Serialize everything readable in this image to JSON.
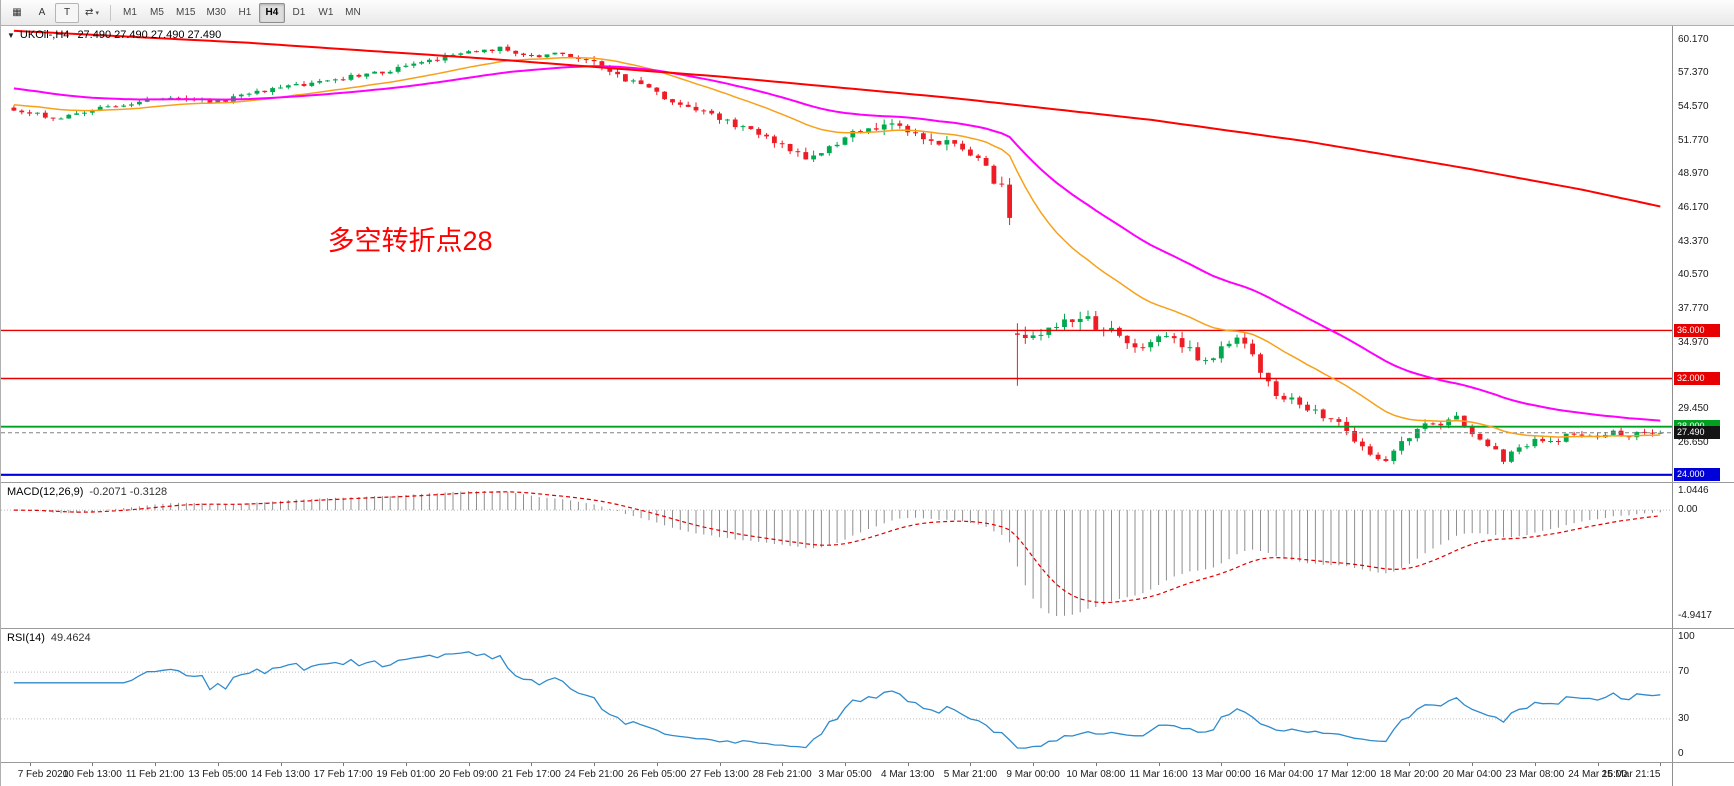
{
  "toolbar": {
    "icon_buttons": [
      {
        "name": "chart-grid-icon-button",
        "glyph": "▦"
      },
      {
        "name": "cursor-tool-button",
        "glyph": "A"
      },
      {
        "name": "text-tool-button",
        "glyph": "T",
        "boxed": true
      },
      {
        "name": "chart-cycle-button",
        "glyph": "⇄",
        "caret": "▾"
      }
    ],
    "timeframes": [
      "M1",
      "M5",
      "M15",
      "M30",
      "H1",
      "H4",
      "D1",
      "W1",
      "MN"
    ],
    "active_timeframe": "H4"
  },
  "chart_data": {
    "type": "candlestick",
    "symbol": "UKOil-",
    "timeframe": "H4",
    "title": "UKOil-,H4",
    "ohlc_readout": "27.490 27.490 27.490 27.490",
    "collapse_glyph": "▼",
    "annotation": {
      "text": "多空转折点28",
      "color": "#ff0000",
      "anchor_index": 40,
      "anchor_price": 44.6
    },
    "visible_range": {
      "price_min": 23.4,
      "price_max": 61.3
    },
    "bars": 211,
    "bar_spacing": 7.84,
    "seed": 20200325,
    "up_color": "#00a94e",
    "down_color": "#ee1c25",
    "price_axis_ticks": [
      60.17,
      57.37,
      54.57,
      51.77,
      48.97,
      46.17,
      43.37,
      40.57,
      37.77,
      34.97,
      29.45,
      26.65
    ],
    "levels": [
      {
        "value": 36.0,
        "label": "36.000",
        "color": "#e80000",
        "width": 1.4
      },
      {
        "value": 32.0,
        "label": "32.000",
        "color": "#e80000",
        "width": 1.4
      },
      {
        "value": 28.0,
        "label": "28.000",
        "color": "#00a021",
        "width": 1.8
      },
      {
        "value": 24.0,
        "label": "24.000",
        "color": "#0000d8",
        "width": 2.2
      }
    ],
    "current_price": {
      "value": 27.49,
      "label": "27.490",
      "badge_color": "#141414",
      "line_color": "#808080"
    },
    "price_path_anchors": [
      [
        0,
        54.3
      ],
      [
        6,
        53.6
      ],
      [
        12,
        54.6
      ],
      [
        20,
        55.3
      ],
      [
        26,
        55.0
      ],
      [
        32,
        55.9
      ],
      [
        40,
        56.8
      ],
      [
        48,
        57.6
      ],
      [
        56,
        58.9
      ],
      [
        62,
        59.4
      ],
      [
        66,
        58.7
      ],
      [
        70,
        59.1
      ],
      [
        74,
        58.3
      ],
      [
        78,
        56.8
      ],
      [
        84,
        55.2
      ],
      [
        90,
        53.5
      ],
      [
        96,
        52.0
      ],
      [
        101,
        50.3
      ],
      [
        104,
        51.2
      ],
      [
        108,
        52.6
      ],
      [
        112,
        53.3
      ],
      [
        116,
        52.2
      ],
      [
        120,
        51.3
      ],
      [
        123,
        50.2
      ],
      [
        126,
        47.8
      ],
      [
        127,
        45.6
      ],
      [
        128,
        36.1
      ],
      [
        129,
        35.8
      ],
      [
        130,
        35.2
      ],
      [
        132,
        36.3
      ],
      [
        136,
        36.8
      ],
      [
        140,
        36.2
      ],
      [
        143,
        34.8
      ],
      [
        146,
        35.6
      ],
      [
        150,
        34.3
      ],
      [
        152,
        33.2
      ],
      [
        154,
        34.5
      ],
      [
        156,
        35.6
      ],
      [
        158,
        33.9
      ],
      [
        160,
        31.5
      ],
      [
        162,
        30.2
      ],
      [
        164,
        30.0
      ],
      [
        166,
        29.3
      ],
      [
        168,
        28.6
      ],
      [
        170,
        27.8
      ],
      [
        172,
        26.3
      ],
      [
        174,
        25.2
      ],
      [
        175,
        24.9
      ],
      [
        176,
        25.9
      ],
      [
        178,
        27.3
      ],
      [
        180,
        28.4
      ],
      [
        182,
        28.2
      ],
      [
        184,
        28.9
      ],
      [
        186,
        27.6
      ],
      [
        188,
        26.5
      ],
      [
        190,
        25.3
      ],
      [
        192,
        26.2
      ],
      [
        194,
        26.9
      ],
      [
        196,
        26.6
      ],
      [
        198,
        27.2
      ],
      [
        200,
        27.4
      ],
      [
        202,
        27.1
      ],
      [
        204,
        27.5
      ],
      [
        206,
        27.2
      ],
      [
        208,
        27.6
      ],
      [
        210,
        27.49
      ]
    ],
    "gap_open": {
      "index": 128,
      "open": 35.75
    },
    "high_override": {
      "index": 128,
      "high": 36.6
    },
    "low_override": {
      "index": 128,
      "low": 31.4
    },
    "volatility_anchors": [
      [
        0,
        0.3
      ],
      [
        70,
        0.35
      ],
      [
        78,
        0.5
      ],
      [
        100,
        0.55
      ],
      [
        124,
        0.7
      ],
      [
        127,
        0.9
      ],
      [
        128,
        1.1
      ],
      [
        150,
        0.8
      ],
      [
        162,
        0.6
      ],
      [
        176,
        0.55
      ],
      [
        190,
        0.45
      ],
      [
        210,
        0.4
      ]
    ],
    "moving_averages": [
      {
        "name": "ma-fast-orange",
        "type": "ema",
        "period": 21,
        "seed": 54.8,
        "color": "#f7a11a",
        "width": 1.5
      },
      {
        "name": "ma-mid-magenta",
        "type": "ema",
        "period": 45,
        "seed": 56.2,
        "color": "#ff00ff",
        "width": 2
      },
      {
        "name": "ma-slow-red",
        "type": "anchors",
        "color": "#ff0000",
        "width": 2,
        "points": [
          [
            0,
            60.9
          ],
          [
            30,
            59.9
          ],
          [
            60,
            58.6
          ],
          [
            90,
            57.1
          ],
          [
            120,
            55.3
          ],
          [
            145,
            53.5
          ],
          [
            165,
            51.7
          ],
          [
            185,
            49.5
          ],
          [
            200,
            47.7
          ],
          [
            210,
            46.3
          ]
        ]
      }
    ],
    "macd": {
      "label": "MACD(12,26,9)",
      "displayed_values": "-0.2071 -0.3128",
      "params": {
        "fast": 12,
        "slow": 26,
        "signal": 9
      },
      "axis_labels": [
        "1.0446",
        "0.00",
        "-4.9417"
      ],
      "histogram_color": "#8f8f8f",
      "signal_color": "#e00000"
    },
    "rsi": {
      "label": "RSI(14)",
      "displayed_value": "49.4624",
      "period": 14,
      "axis_labels": [
        100,
        70,
        30,
        0
      ],
      "level_lines": [
        70,
        30
      ],
      "line_color": "#2f8bcd"
    },
    "time_axis_ticks": [
      "7 Feb 2020",
      "10 Feb 13:00",
      "11 Feb 21:00",
      "13 Feb 05:00",
      "14 Feb 13:00",
      "17 Feb 17:00",
      "19 Feb 01:00",
      "20 Feb 09:00",
      "21 Feb 17:00",
      "24 Feb 21:00",
      "26 Feb 05:00",
      "27 Feb 13:00",
      "28 Feb 21:00",
      "3 Mar 05:00",
      "4 Mar 13:00",
      "5 Mar 21:00",
      "9 Mar 00:00",
      "10 Mar 08:00",
      "11 Mar 16:00",
      "13 Mar 00:00",
      "16 Mar 04:00",
      "17 Mar 12:00",
      "18 Mar 20:00",
      "20 Mar 04:00",
      "23 Mar 08:00",
      "24 Mar 16:00",
      "25 Mar 21:15"
    ],
    "time_tick_first_bar": 2,
    "time_tick_step": 8
  }
}
